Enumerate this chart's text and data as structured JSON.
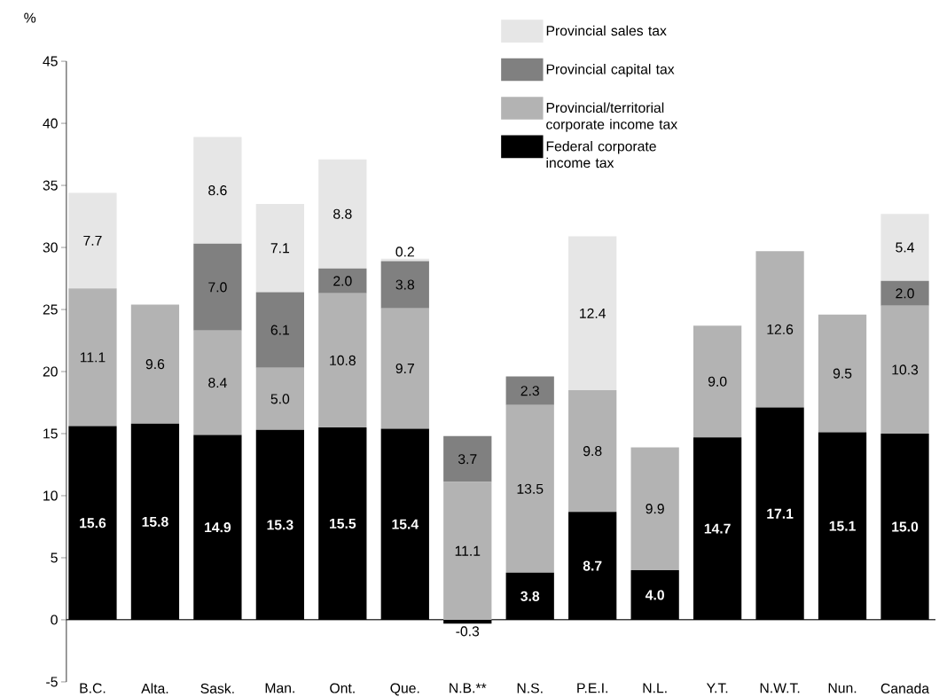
{
  "chart_data": {
    "type": "bar",
    "stacked": true,
    "ylabel": "%",
    "categories": [
      "B.C.",
      "Alta.",
      "Sask.",
      "Man.",
      "Ont.",
      "Que.",
      "N.B.**",
      "N.S.",
      "P.E.I.",
      "N.L.",
      "Y.T.",
      "N.W.T.",
      "Nun.",
      "Canada"
    ],
    "ylim": [
      -5,
      45
    ],
    "yticks": [
      -5,
      0,
      5,
      10,
      15,
      20,
      25,
      30,
      35,
      40,
      45
    ],
    "legend": "top right",
    "series": [
      {
        "name": "Federal corporate income tax",
        "color": "#000000",
        "values": [
          15.6,
          15.8,
          14.9,
          15.3,
          15.5,
          15.4,
          -0.3,
          3.8,
          8.7,
          4.0,
          14.7,
          17.1,
          15.1,
          15.0
        ],
        "value_labels": [
          "15.6",
          "15.8",
          "14.9",
          "15.3",
          "15.5",
          "15.4",
          "-0.3",
          "3.8",
          "8.7",
          "4.0",
          "14.7",
          "17.1",
          "15.1",
          "15.0"
        ]
      },
      {
        "name": "Provincial/territorial corporate income tax",
        "color": "#b3b3b3",
        "values": [
          11.1,
          9.6,
          8.4,
          5.0,
          10.8,
          9.7,
          11.1,
          13.5,
          9.8,
          9.9,
          9.0,
          12.6,
          9.5,
          10.3
        ],
        "value_labels": [
          "11.1",
          "9.6",
          "8.4",
          "5.0",
          "10.8",
          "9.7",
          "11.1",
          "13.5",
          "9.8",
          "9.9",
          "9.0",
          "12.6",
          "9.5",
          "10.3"
        ]
      },
      {
        "name": "Provincial capital tax",
        "color": "#808080",
        "values": [
          null,
          null,
          7.0,
          6.1,
          2.0,
          3.8,
          3.7,
          2.3,
          null,
          null,
          null,
          null,
          null,
          2.0
        ],
        "value_labels": [
          null,
          null,
          "7.0",
          "6.1",
          "2.0",
          "3.8",
          "3.7",
          "2.3",
          null,
          null,
          null,
          null,
          null,
          "2.0"
        ]
      },
      {
        "name": "Provincial sales tax",
        "color": "#e6e6e6",
        "values": [
          7.7,
          null,
          8.6,
          7.1,
          8.8,
          0.2,
          null,
          null,
          12.4,
          null,
          null,
          null,
          null,
          5.4
        ],
        "value_labels": [
          "7.7",
          null,
          "8.6",
          "7.1",
          "8.8",
          "0.2",
          null,
          null,
          "12.4",
          null,
          null,
          null,
          null,
          "5.4"
        ]
      }
    ]
  }
}
